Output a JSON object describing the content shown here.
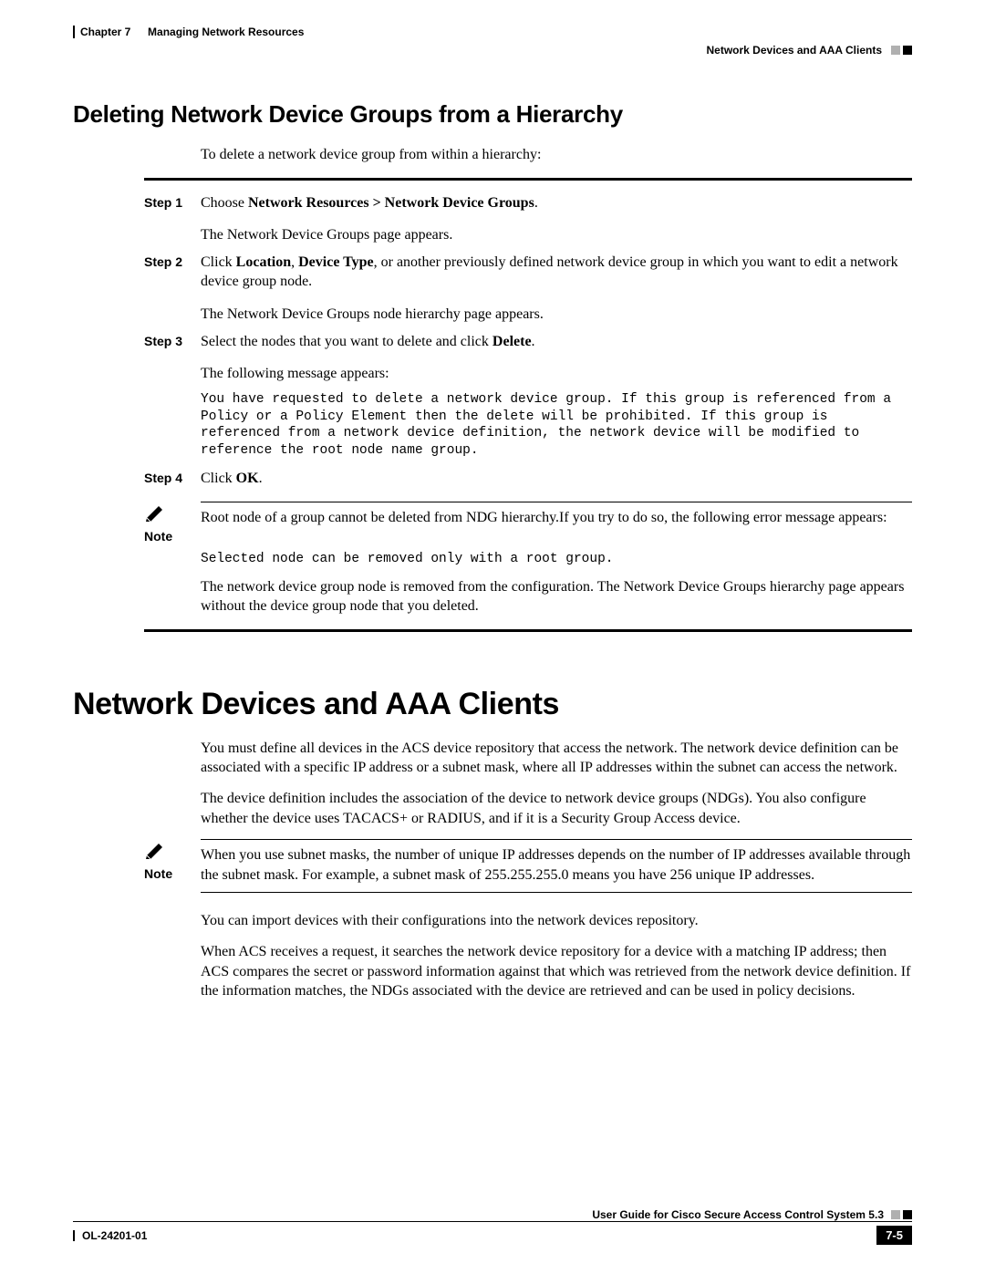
{
  "header": {
    "chapter": "Chapter 7",
    "chapter_title": "Managing Network Resources",
    "breadcrumb": "Network Devices and AAA Clients"
  },
  "section1": {
    "title": "Deleting Network Device Groups from a Hierarchy",
    "intro": "To delete a network device group from within a hierarchy:",
    "steps": [
      {
        "label": "Step 1",
        "parts": [
          {
            "t": "Choose "
          },
          {
            "t": "Network Resources > Network Device Groups",
            "b": true
          },
          {
            "t": "."
          }
        ],
        "after": [
          "The Network Device Groups page appears."
        ]
      },
      {
        "label": "Step 2",
        "parts": [
          {
            "t": "Click "
          },
          {
            "t": "Location",
            "b": true
          },
          {
            "t": ", "
          },
          {
            "t": "Device Type",
            "b": true
          },
          {
            "t": ", or another previously defined network device group in which you want to edit a network device group node."
          }
        ],
        "after": [
          "The Network Device Groups node hierarchy page appears."
        ]
      },
      {
        "label": "Step 3",
        "parts": [
          {
            "t": "Select the nodes that you want to delete and click "
          },
          {
            "t": "Delete",
            "b": true
          },
          {
            "t": "."
          }
        ],
        "after": [
          "The following message appears:"
        ],
        "code": "You have requested to delete a network device group. If this group is referenced from a Policy or a Policy Element then the delete will be prohibited. If this group is referenced from a network device definition, the network device will be modified to reference the root node name group."
      },
      {
        "label": "Step 4",
        "parts": [
          {
            "t": "Click "
          },
          {
            "t": "OK",
            "b": true
          },
          {
            "t": "."
          }
        ]
      }
    ],
    "note": {
      "label": "Note",
      "text": "Root node of a group cannot be deleted from NDG hierarchy.If you try to do so, the following error message appears:",
      "code": "Selected node can be removed only with a root group."
    },
    "closing": "The network device group node is removed from the configuration. The Network Device Groups hierarchy page appears without the device group node that you deleted."
  },
  "section2": {
    "title": "Network Devices and AAA Clients",
    "paras": [
      "You must define all devices in the ACS device repository that access the network. The network device definition can be associated with a specific IP address or a subnet mask, where all IP addresses within the subnet can access the network.",
      "The device definition includes the association of the device to network device groups (NDGs). You also configure whether the device uses TACACS+ or RADIUS, and if it is a Security Group Access device."
    ],
    "note": {
      "label": "Note",
      "text": "When you use subnet masks, the number of unique IP addresses depends on the number of IP addresses available through the subnet mask. For example, a subnet mask of 255.255.255.0 means you have 256 unique IP addresses."
    },
    "paras_after": [
      "You can import devices with their configurations into the network devices repository.",
      "When ACS receives a request, it searches the network device repository for a device with a matching IP address; then ACS compares the secret or password information against that which was retrieved from the network device definition. If the information matches, the NDGs associated with the device are retrieved and can be used in policy decisions."
    ]
  },
  "footer": {
    "guide": "User Guide for Cisco Secure Access Control System 5.3",
    "docnum": "OL-24201-01",
    "pagenum": "7-5"
  },
  "colors": {
    "text": "#000000",
    "bg": "#ffffff",
    "gray_square": "#b0b0b0"
  }
}
